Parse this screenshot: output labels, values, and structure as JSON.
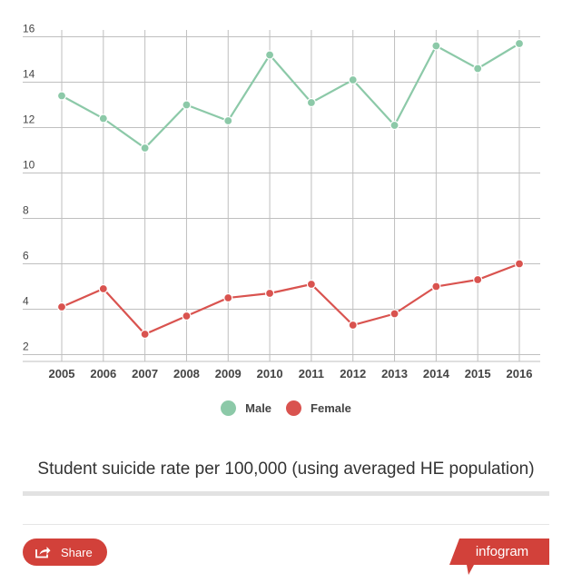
{
  "chart_data": {
    "type": "line",
    "x": [
      "2005",
      "2006",
      "2007",
      "2008",
      "2009",
      "2010",
      "2011",
      "2012",
      "2013",
      "2014",
      "2015",
      "2016"
    ],
    "series": [
      {
        "name": "Male",
        "color": "#8cc9a8",
        "values": [
          13.4,
          12.4,
          11.1,
          13.0,
          12.3,
          15.2,
          13.1,
          14.1,
          12.1,
          15.6,
          14.6,
          15.7
        ]
      },
      {
        "name": "Female",
        "color": "#d9534f",
        "values": [
          4.1,
          4.9,
          2.9,
          3.7,
          4.5,
          4.7,
          5.1,
          3.3,
          3.8,
          5.0,
          5.3,
          6.0
        ]
      }
    ],
    "yticks": [
      2,
      4,
      6,
      8,
      10,
      12,
      14,
      16
    ],
    "ylim": [
      1.7,
      16.3
    ],
    "grid": true,
    "legend_position": "bottom",
    "title": "Student suicide rate per 100,000 (using averaged HE population)",
    "xlabel": "",
    "ylabel": ""
  },
  "legend": {
    "male_label": "Male",
    "female_label": "Female",
    "male_color": "#8cc9a8",
    "female_color": "#d9534f"
  },
  "footer": {
    "share_label": "Share",
    "brand_label": "infogram",
    "accent_color": "#d2413a"
  },
  "icons": {
    "share": "share-icon",
    "brand": "infogram-logo"
  }
}
